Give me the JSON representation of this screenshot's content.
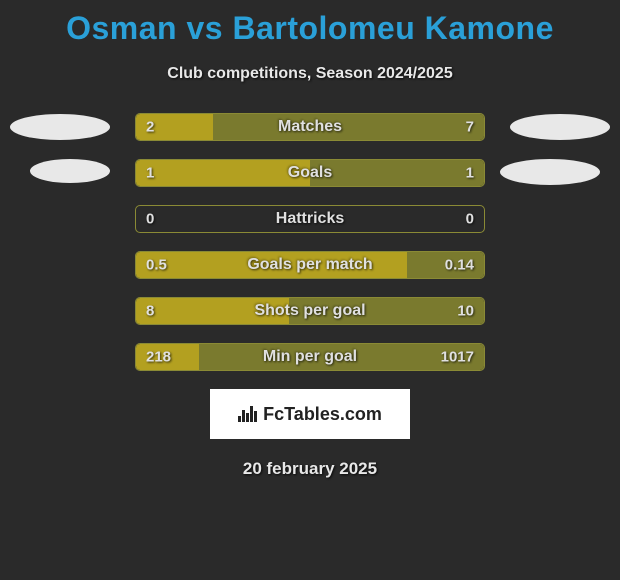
{
  "title": "Osman vs Bartolomeu Kamone",
  "title_color": "#2aa0d8",
  "subtitle": "Club competitions, Season 2024/2025",
  "subtitle_color": "#e8e8e8",
  "background_color": "#2a2a2a",
  "player1": {
    "oval_color": "#e8e8e8"
  },
  "player2": {
    "oval_color": "#e8e8e8"
  },
  "bar_border_color": "#8a8a35",
  "bar_left_color": "#b3a020",
  "bar_right_color": "#7a7a2e",
  "label_color": "#e0e0e0",
  "value_color": "#e0e0e0",
  "stats": [
    {
      "label": "Matches",
      "left_val": "2",
      "right_val": "7",
      "left_pct": 22,
      "right_pct": 78
    },
    {
      "label": "Goals",
      "left_val": "1",
      "right_val": "1",
      "left_pct": 50,
      "right_pct": 50
    },
    {
      "label": "Hattricks",
      "left_val": "0",
      "right_val": "0",
      "left_pct": 0,
      "right_pct": 0
    },
    {
      "label": "Goals per match",
      "left_val": "0.5",
      "right_val": "0.14",
      "left_pct": 78,
      "right_pct": 22
    },
    {
      "label": "Shots per goal",
      "left_val": "8",
      "right_val": "10",
      "left_pct": 44,
      "right_pct": 56
    },
    {
      "label": "Min per goal",
      "left_val": "218",
      "right_val": "1017",
      "left_pct": 18,
      "right_pct": 82
    }
  ],
  "branding_text": "FcTables.com",
  "date_text": "20 february 2025",
  "date_color": "#e8e8e8"
}
